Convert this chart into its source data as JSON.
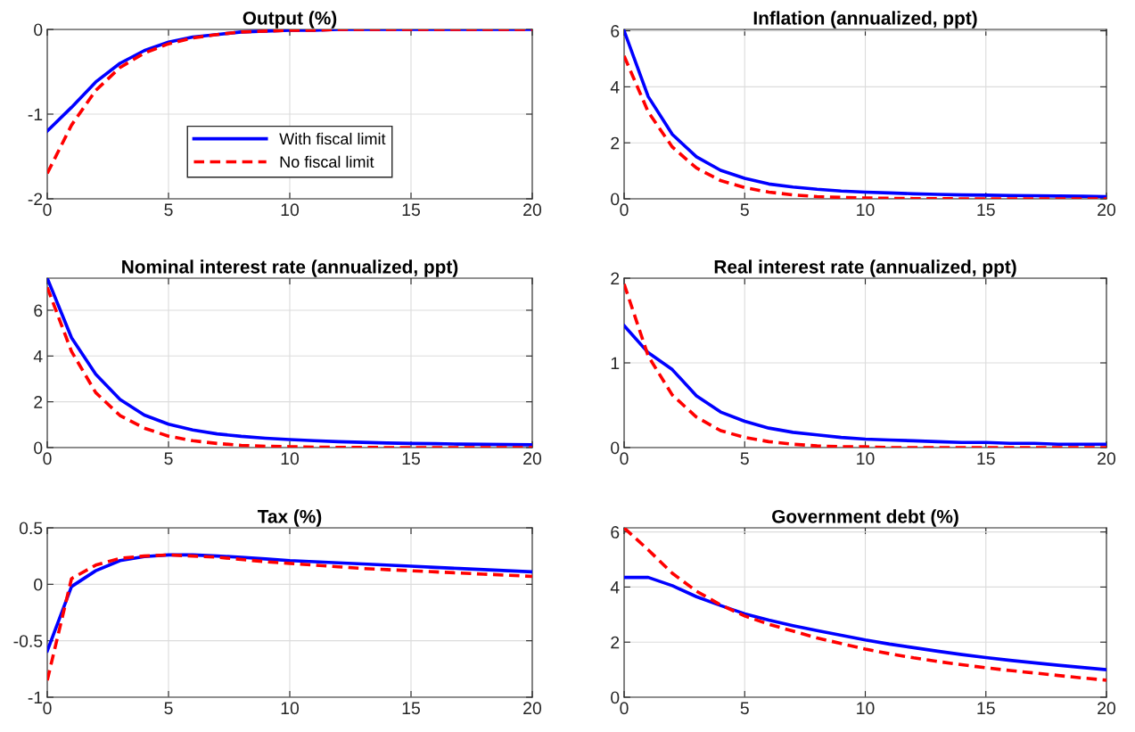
{
  "chart_data": [
    {
      "type": "line",
      "title": "Output (%)",
      "x": [
        0,
        1,
        2,
        3,
        4,
        5,
        6,
        7,
        8,
        9,
        10,
        11,
        12,
        13,
        14,
        15,
        16,
        17,
        18,
        19,
        20
      ],
      "xlim": [
        0,
        20
      ],
      "xticks": [
        0,
        5,
        10,
        15,
        20
      ],
      "ylim": [
        -2,
        0
      ],
      "yticks": [
        -2,
        -1,
        0
      ],
      "grid": true,
      "legend": "bottom",
      "series": [
        {
          "name": "With fiscal limit",
          "color": "#0000ff",
          "line_style": "solid",
          "values": [
            -1.2,
            -0.92,
            -0.62,
            -0.4,
            -0.25,
            -0.15,
            -0.09,
            -0.06,
            -0.03,
            -0.02,
            -0.01,
            -0.01,
            0,
            0,
            0,
            0,
            0,
            0,
            0,
            0,
            0
          ]
        },
        {
          "name": "No fiscal limit",
          "color": "#ff0000",
          "line_style": "dashed",
          "values": [
            -1.7,
            -1.13,
            -0.72,
            -0.45,
            -0.28,
            -0.17,
            -0.1,
            -0.06,
            -0.03,
            -0.02,
            -0.01,
            -0.01,
            0,
            0,
            0,
            0,
            0,
            0,
            0,
            0,
            0
          ]
        }
      ]
    },
    {
      "type": "line",
      "title": "Inflation (annualized, ppt)",
      "x": [
        0,
        1,
        2,
        3,
        4,
        5,
        6,
        7,
        8,
        9,
        10,
        11,
        12,
        13,
        14,
        15,
        16,
        17,
        18,
        19,
        20
      ],
      "xlim": [
        0,
        20
      ],
      "xticks": [
        0,
        5,
        10,
        15,
        20
      ],
      "ylim": [
        0,
        6.05
      ],
      "yticks": [
        0,
        2,
        4,
        6
      ],
      "grid": true,
      "series": [
        {
          "color": "#0000ff",
          "line_style": "solid",
          "values": [
            6.0,
            3.65,
            2.3,
            1.5,
            1.02,
            0.73,
            0.53,
            0.42,
            0.34,
            0.28,
            0.24,
            0.21,
            0.18,
            0.16,
            0.14,
            0.13,
            0.12,
            0.11,
            0.1,
            0.09,
            0.08
          ]
        },
        {
          "color": "#ff0000",
          "line_style": "dashed",
          "values": [
            5.1,
            3.1,
            1.85,
            1.1,
            0.65,
            0.4,
            0.24,
            0.14,
            0.08,
            0.05,
            0.03,
            0.02,
            0.01,
            0.01,
            0,
            0,
            0,
            0,
            0,
            0,
            0
          ]
        }
      ]
    },
    {
      "type": "line",
      "title": "Nominal interest rate (annualized, ppt)",
      "x": [
        0,
        1,
        2,
        3,
        4,
        5,
        6,
        7,
        8,
        9,
        10,
        11,
        12,
        13,
        14,
        15,
        16,
        17,
        18,
        19,
        20
      ],
      "xlim": [
        0,
        20
      ],
      "xticks": [
        0,
        5,
        10,
        15,
        20
      ],
      "ylim": [
        0,
        7.4
      ],
      "yticks": [
        0,
        2,
        4,
        6
      ],
      "grid": true,
      "series": [
        {
          "color": "#0000ff",
          "line_style": "solid",
          "values": [
            7.4,
            4.8,
            3.2,
            2.1,
            1.42,
            1.02,
            0.77,
            0.6,
            0.49,
            0.41,
            0.35,
            0.3,
            0.26,
            0.23,
            0.2,
            0.18,
            0.17,
            0.15,
            0.14,
            0.13,
            0.12
          ]
        },
        {
          "color": "#ff0000",
          "line_style": "dashed",
          "values": [
            7.0,
            4.2,
            2.4,
            1.4,
            0.85,
            0.5,
            0.3,
            0.18,
            0.1,
            0.06,
            0.04,
            0.02,
            0.01,
            0.01,
            0,
            0,
            0,
            0,
            0,
            0,
            0
          ]
        }
      ]
    },
    {
      "type": "line",
      "title": "Real interest rate (annualized, ppt)",
      "x": [
        0,
        1,
        2,
        3,
        4,
        5,
        6,
        7,
        8,
        9,
        10,
        11,
        12,
        13,
        14,
        15,
        16,
        17,
        18,
        19,
        20
      ],
      "xlim": [
        0,
        20
      ],
      "xticks": [
        0,
        5,
        10,
        15,
        20
      ],
      "ylim": [
        0,
        2
      ],
      "yticks": [
        0,
        1,
        2
      ],
      "grid": true,
      "series": [
        {
          "color": "#0000ff",
          "line_style": "solid",
          "values": [
            1.44,
            1.12,
            0.92,
            0.61,
            0.42,
            0.31,
            0.23,
            0.18,
            0.15,
            0.12,
            0.1,
            0.09,
            0.08,
            0.07,
            0.06,
            0.06,
            0.05,
            0.05,
            0.04,
            0.04,
            0.04
          ]
        },
        {
          "color": "#ff0000",
          "line_style": "dashed",
          "values": [
            1.93,
            1.08,
            0.62,
            0.36,
            0.2,
            0.12,
            0.07,
            0.04,
            0.02,
            0.01,
            0.01,
            0,
            0,
            0,
            0,
            0,
            0,
            0,
            0,
            0,
            0
          ]
        }
      ]
    },
    {
      "type": "line",
      "title": "Tax (%)",
      "x": [
        0,
        1,
        2,
        3,
        4,
        5,
        6,
        7,
        8,
        9,
        10,
        11,
        12,
        13,
        14,
        15,
        16,
        17,
        18,
        19,
        20
      ],
      "xlim": [
        0,
        20
      ],
      "xticks": [
        0,
        5,
        10,
        15,
        20
      ],
      "ylim": [
        -1,
        0.5
      ],
      "yticks": [
        -1,
        -0.5,
        0,
        0.5
      ],
      "grid": true,
      "series": [
        {
          "color": "#0000ff",
          "line_style": "solid",
          "values": [
            -0.59,
            -0.02,
            0.12,
            0.21,
            0.245,
            0.26,
            0.26,
            0.25,
            0.24,
            0.225,
            0.21,
            0.2,
            0.19,
            0.18,
            0.17,
            0.16,
            0.15,
            0.14,
            0.13,
            0.12,
            0.11
          ]
        },
        {
          "color": "#ff0000",
          "line_style": "dashed",
          "values": [
            -0.85,
            0.05,
            0.17,
            0.23,
            0.25,
            0.26,
            0.25,
            0.24,
            0.22,
            0.2,
            0.185,
            0.17,
            0.155,
            0.14,
            0.13,
            0.12,
            0.11,
            0.1,
            0.09,
            0.08,
            0.07
          ]
        }
      ]
    },
    {
      "type": "line",
      "title": "Government debt (%)",
      "x": [
        0,
        1,
        2,
        3,
        4,
        5,
        6,
        7,
        8,
        9,
        10,
        11,
        12,
        13,
        14,
        15,
        16,
        17,
        18,
        19,
        20
      ],
      "xlim": [
        0,
        20
      ],
      "xticks": [
        0,
        5,
        10,
        15,
        20
      ],
      "ylim": [
        0,
        6.15
      ],
      "yticks": [
        0,
        2,
        4,
        6
      ],
      "grid": true,
      "series": [
        {
          "color": "#0000ff",
          "line_style": "solid",
          "values": [
            4.35,
            4.35,
            4.05,
            3.65,
            3.33,
            3.03,
            2.8,
            2.6,
            2.42,
            2.25,
            2.08,
            1.93,
            1.8,
            1.67,
            1.55,
            1.44,
            1.34,
            1.25,
            1.16,
            1.08,
            1.0
          ]
        },
        {
          "color": "#ff0000",
          "line_style": "dashed",
          "values": [
            6.15,
            5.35,
            4.5,
            3.85,
            3.35,
            2.95,
            2.65,
            2.4,
            2.15,
            1.95,
            1.75,
            1.58,
            1.43,
            1.3,
            1.18,
            1.07,
            0.97,
            0.88,
            0.79,
            0.7,
            0.62
          ]
        }
      ]
    }
  ]
}
